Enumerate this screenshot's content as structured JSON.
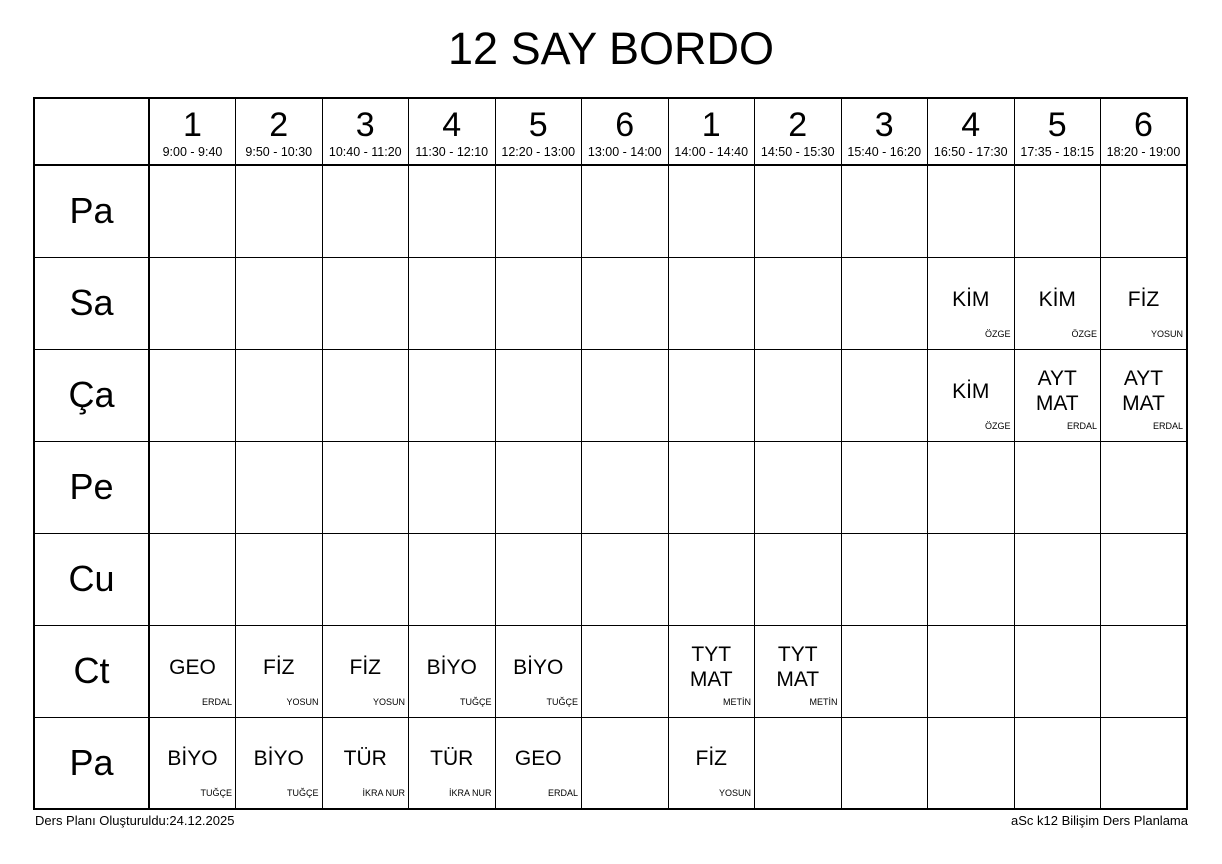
{
  "title": "12 SAY BORDO",
  "footer": {
    "left": "Ders Planı Oluşturuldu:24.12.2025",
    "right": "aSc k12 Bilişim Ders Planlama"
  },
  "columns": [
    {
      "num": "1",
      "time": "9:00 - 9:40"
    },
    {
      "num": "2",
      "time": "9:50 - 10:30"
    },
    {
      "num": "3",
      "time": "10:40 - 11:20"
    },
    {
      "num": "4",
      "time": "11:30 - 12:10"
    },
    {
      "num": "5",
      "time": "12:20 - 13:00"
    },
    {
      "num": "6",
      "time": "13:00 - 14:00"
    },
    {
      "num": "1",
      "time": "14:00 - 14:40"
    },
    {
      "num": "2",
      "time": "14:50 - 15:30"
    },
    {
      "num": "3",
      "time": "15:40 - 16:20"
    },
    {
      "num": "4",
      "time": "16:50 - 17:30"
    },
    {
      "num": "5",
      "time": "17:35 - 18:15"
    },
    {
      "num": "6",
      "time": "18:20 - 19:00"
    }
  ],
  "rows": [
    {
      "day": "Pa",
      "cells": [
        null,
        null,
        null,
        null,
        null,
        null,
        null,
        null,
        null,
        null,
        null,
        null
      ]
    },
    {
      "day": "Sa",
      "cells": [
        null,
        null,
        null,
        null,
        null,
        null,
        null,
        null,
        null,
        {
          "subject": "KİM",
          "teacher": "ÖZGE"
        },
        {
          "subject": "KİM",
          "teacher": "ÖZGE"
        },
        {
          "subject": "FİZ",
          "teacher": "YOSUN"
        }
      ]
    },
    {
      "day": "Ça",
      "cells": [
        null,
        null,
        null,
        null,
        null,
        null,
        null,
        null,
        null,
        {
          "subject": "KİM",
          "teacher": "ÖZGE"
        },
        {
          "subject": "AYT\nMAT",
          "teacher": "ERDAL"
        },
        {
          "subject": "AYT\nMAT",
          "teacher": "ERDAL"
        }
      ]
    },
    {
      "day": "Pe",
      "cells": [
        null,
        null,
        null,
        null,
        null,
        null,
        null,
        null,
        null,
        null,
        null,
        null
      ]
    },
    {
      "day": "Cu",
      "cells": [
        null,
        null,
        null,
        null,
        null,
        null,
        null,
        null,
        null,
        null,
        null,
        null
      ]
    },
    {
      "day": "Ct",
      "cells": [
        {
          "subject": "GEO",
          "teacher": "ERDAL"
        },
        {
          "subject": "FİZ",
          "teacher": "YOSUN"
        },
        {
          "subject": "FİZ",
          "teacher": "YOSUN"
        },
        {
          "subject": "BİYO",
          "teacher": "TUĞÇE"
        },
        {
          "subject": "BİYO",
          "teacher": "TUĞÇE"
        },
        null,
        {
          "subject": "TYT\nMAT",
          "teacher": "METİN"
        },
        {
          "subject": "TYT\nMAT",
          "teacher": "METİN"
        },
        null,
        null,
        null,
        null
      ]
    },
    {
      "day": "Pa",
      "cells": [
        {
          "subject": "BİYO",
          "teacher": "TUĞÇE"
        },
        {
          "subject": "BİYO",
          "teacher": "TUĞÇE"
        },
        {
          "subject": "TÜR",
          "teacher": "İKRA NUR"
        },
        {
          "subject": "TÜR",
          "teacher": "İKRA NUR"
        },
        {
          "subject": "GEO",
          "teacher": "ERDAL"
        },
        null,
        {
          "subject": "FİZ",
          "teacher": "YOSUN"
        },
        null,
        null,
        null,
        null,
        null
      ]
    }
  ]
}
